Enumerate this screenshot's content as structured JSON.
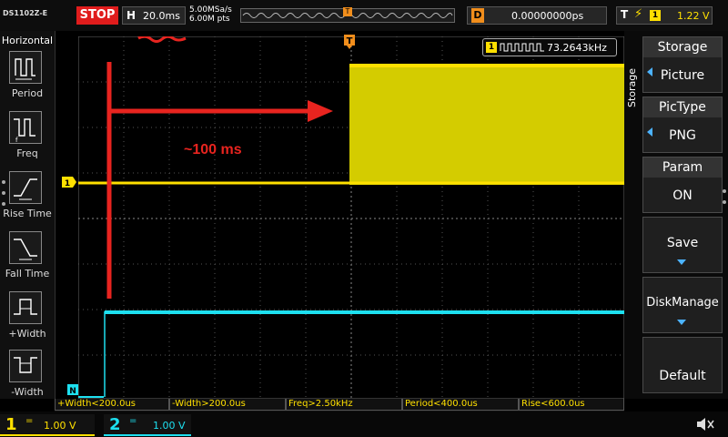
{
  "topbar": {
    "model": "DS1102Z-E",
    "run_state": "STOP",
    "horizontal": {
      "letter": "H",
      "scale": "20.0ms"
    },
    "sample_rate": "5.00MSa/s",
    "memory_depth": "6.00M pts",
    "trigger_marker": "T",
    "delay": {
      "letter": "D",
      "value": "0.00000000ps"
    },
    "trigger": {
      "letter": "T",
      "source": "1",
      "level": "1.22 V"
    }
  },
  "left_menu": {
    "title": "Horizontal",
    "items": [
      {
        "label": "Period",
        "icon": "period-icon"
      },
      {
        "label": "Freq",
        "icon": "freq-icon"
      },
      {
        "label": "Rise Time",
        "icon": "rise-time-icon"
      },
      {
        "label": "Fall Time",
        "icon": "fall-time-icon"
      },
      {
        "label": "+Width",
        "icon": "pos-width-icon"
      },
      {
        "label": "-Width",
        "icon": "neg-width-icon"
      }
    ]
  },
  "right_menu": {
    "side_label": "Storage",
    "items": [
      {
        "title": "Storage",
        "value": "Picture"
      },
      {
        "title": "PicType",
        "value": "PNG"
      },
      {
        "title": "Param",
        "value": "ON"
      },
      {
        "title": "Save",
        "value": ""
      },
      {
        "title": "DiskManage",
        "value": ""
      },
      {
        "title": "Default",
        "value": ""
      }
    ]
  },
  "measurements": [
    "+Width<200.0us",
    "-Width>200.0us",
    "Freq>2.50kHz",
    "Period<400.0us",
    "Rise<600.0us"
  ],
  "freq_readout": {
    "channel": "1",
    "value": "73.2643kHz"
  },
  "annotation": {
    "text": "~100 ms"
  },
  "channels": [
    {
      "number": "1",
      "scale": "1.00 V",
      "color": "#ffe000"
    },
    {
      "number": "2",
      "scale": "1.00 V",
      "color": "#1de0f0"
    }
  ],
  "markers": {
    "ch1": "1",
    "ch2": "N",
    "trigger_level": "T"
  },
  "colors": {
    "ch1": "#ffe000",
    "ch2": "#1de0f0",
    "trigger": "#f18e1c",
    "stop": "#e01c1c",
    "annotation": "#e8241f"
  }
}
